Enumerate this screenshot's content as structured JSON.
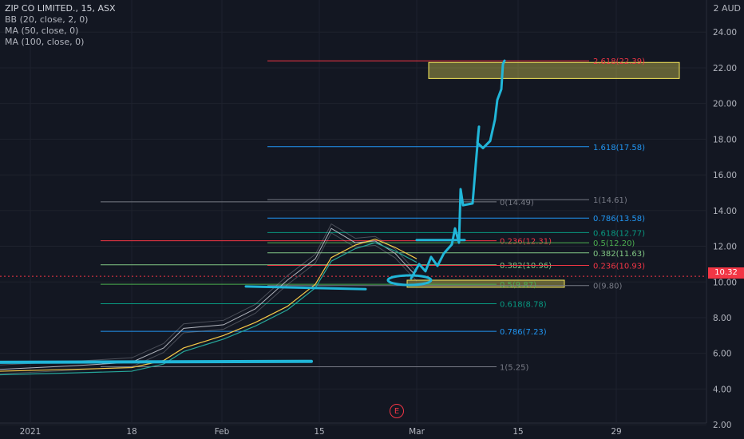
{
  "legend": {
    "title": "ZIP CO LIMITED., 15, ASX",
    "indicators": [
      "BB (20, close, 2, 0)",
      "MA (50, close, 0)",
      "MA (100, close, 0)"
    ]
  },
  "currency": "2 AUD",
  "last_price": "10.32",
  "earnings_badge": "E",
  "chart_data": {
    "type": "line",
    "title": "ZIP CO LIMITED., 15, ASX",
    "ylim": [
      1.2,
      25.8
    ],
    "y_ticks": [
      "24.00",
      "22.00",
      "20.00",
      "18.00",
      "16.00",
      "14.00",
      "12.00",
      "10.00",
      "8.00",
      "6.00",
      "4.00",
      "2.00"
    ],
    "x_ticks": [
      "2021",
      "18",
      "Feb",
      "15",
      "Mar",
      "15",
      "29"
    ],
    "price_series": [
      {
        "date": "2021",
        "close": 5.1
      },
      {
        "date": "",
        "close": 5.3
      },
      {
        "date": "18",
        "close": 5.5
      },
      {
        "date": "",
        "close": 6.3
      },
      {
        "date": "",
        "close": 7.4
      },
      {
        "date": "Feb",
        "close": 7.6
      },
      {
        "date": "",
        "close": 8.5
      },
      {
        "date": "",
        "close": 10.1
      },
      {
        "date": "",
        "close": 11.3
      },
      {
        "date": "15",
        "close": 13.0
      },
      {
        "date": "",
        "close": 12.2
      },
      {
        "date": "",
        "close": 12.3
      },
      {
        "date": "",
        "close": 11.6
      },
      {
        "date": "",
        "close": 10.3
      }
    ],
    "fib_left": [
      {
        "label": "1(5.25)",
        "value": 5.25,
        "color": "#787b86"
      },
      {
        "label": "0.786(7.23)",
        "value": 7.23,
        "color": "#2196f3"
      },
      {
        "label": "0.618(8.78)",
        "value": 8.78,
        "color": "#089981"
      },
      {
        "label": "0.5(9.87)",
        "value": 9.87,
        "color": "#4caf50"
      },
      {
        "label": "0.382(10.96)",
        "value": 10.96,
        "color": "#81c784"
      },
      {
        "label": "0.236(12.31)",
        "value": 12.31,
        "color": "#f23645"
      },
      {
        "label": "0(14.49)",
        "value": 14.49,
        "color": "#787b86"
      }
    ],
    "fib_right": [
      {
        "label": "0(9.80)",
        "value": 9.8,
        "color": "#787b86"
      },
      {
        "label": "0.236(10.93)",
        "value": 10.93,
        "color": "#f23645"
      },
      {
        "label": "0.382(11.63)",
        "value": 11.63,
        "color": "#81c784"
      },
      {
        "label": "0.5(12.20)",
        "value": 12.2,
        "color": "#4caf50"
      },
      {
        "label": "0.618(12.77)",
        "value": 12.77,
        "color": "#089981"
      },
      {
        "label": "0.786(13.58)",
        "value": 13.58,
        "color": "#2196f3"
      },
      {
        "label": "1(14.61)",
        "value": 14.61,
        "color": "#787b86"
      },
      {
        "label": "1.618(17.58)",
        "value": 17.58,
        "color": "#2196f3"
      },
      {
        "label": "2.618(22.39)",
        "value": 22.39,
        "color": "#f23645"
      }
    ],
    "zones": [
      {
        "name": "target-zone",
        "from": 21.4,
        "to": 22.3,
        "color": "#f7e85b"
      },
      {
        "name": "support-zone",
        "from": 9.7,
        "to": 10.1,
        "color": "#f7e85b"
      }
    ],
    "colors": {
      "background": "#131722",
      "price": "#b2b5be",
      "ma50": "#f7c948",
      "ma100": "#26a69a",
      "drawing": "#21b6d8",
      "grid": "#1e222d",
      "axis_text": "#b2b5be"
    }
  }
}
